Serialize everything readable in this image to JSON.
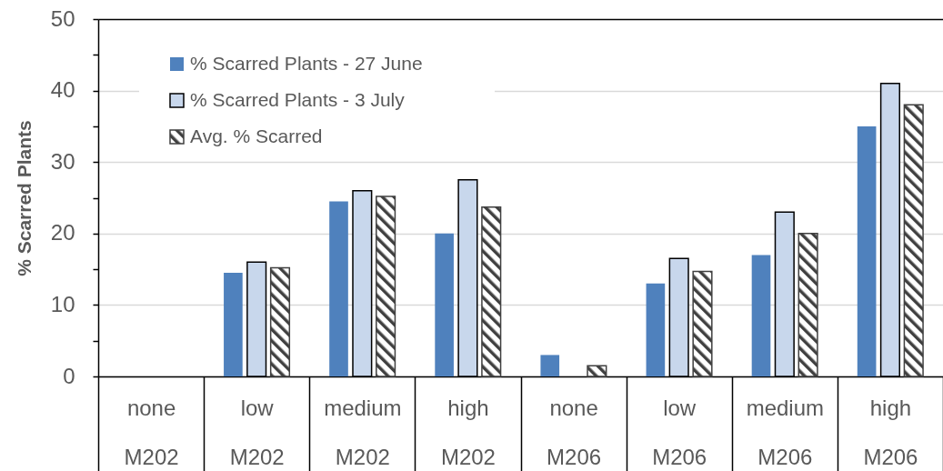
{
  "chart_data": {
    "type": "bar",
    "ylabel": "% Scarred Plants",
    "categories": [
      "none\nM202",
      "low\nM202",
      "medium\nM202",
      "high\nM202",
      "none\nM206",
      "low\nM206",
      "medium\nM206",
      "high\nM206"
    ],
    "series": [
      {
        "name": "% Scarred Plants - 27 June",
        "color": "#4f81bd",
        "values": [
          null,
          14.5,
          24.5,
          20,
          3,
          13,
          17,
          35
        ]
      },
      {
        "name": "% Scarred Plants - 3 July",
        "color": "#c8d7ec",
        "values": [
          null,
          16,
          26,
          27.5,
          null,
          16.5,
          23,
          41
        ]
      },
      {
        "name": "Avg. % Scarred",
        "color": "#404040",
        "values": [
          null,
          15.2,
          25.2,
          23.7,
          1.5,
          14.7,
          20,
          38
        ]
      }
    ],
    "ylim": [
      0,
      50
    ],
    "yticks": [
      0,
      {
        "value": 5,
        "label": null
      },
      10,
      {
        "value": 15,
        "label": null
      },
      20,
      {
        "value": 25,
        "label": null
      },
      30,
      {
        "value": 35,
        "label": null
      },
      40,
      {
        "value": 45,
        "label": null
      },
      50
    ],
    "grid": "y",
    "legend": "top left"
  }
}
